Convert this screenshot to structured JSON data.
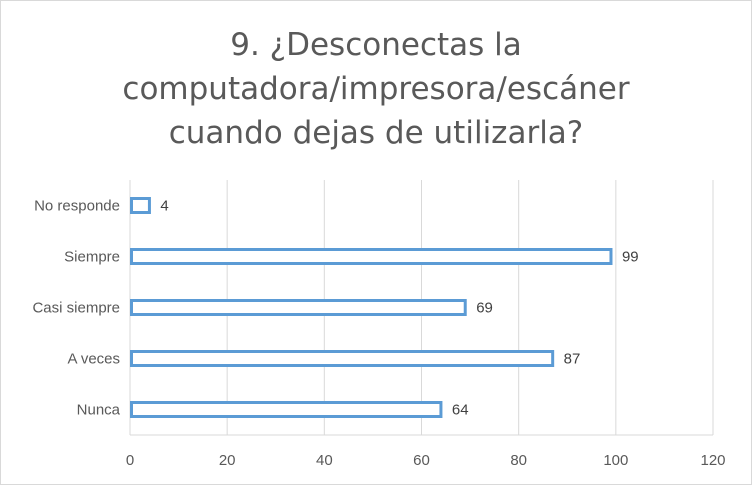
{
  "chart_data": {
    "type": "bar",
    "orientation": "horizontal",
    "title": "9. ¿Desconectas la computadora/impresora/escáner cuando dejas de utilizarla?",
    "title_lines": [
      "9. ¿Desconectas la",
      "computadora/impresora/escáner",
      "cuando dejas de utilizarla?"
    ],
    "categories": [
      "No responde",
      "Siempre",
      "Casi siempre",
      "A veces",
      "Nunca"
    ],
    "values": [
      4,
      99,
      69,
      87,
      64
    ],
    "xlim": [
      0,
      120
    ],
    "xticks": [
      0,
      20,
      40,
      60,
      80,
      100,
      120
    ],
    "grid": true,
    "legend": "none",
    "bar_style": "outline",
    "bar_color": "#5b9bd5"
  }
}
